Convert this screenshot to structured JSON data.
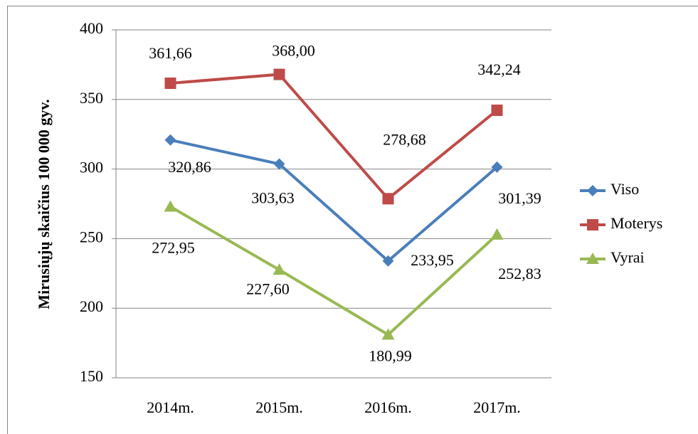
{
  "chart_data": {
    "type": "line",
    "y_label": "Mirusiųjų skaičius 100 000 gyv.",
    "categories": [
      "2014m.",
      "2015m.",
      "2016m.",
      "2017m."
    ],
    "series": [
      {
        "name": "Viso",
        "color": "#4a7ebb",
        "marker": "diamond",
        "values": [
          320.86,
          303.63,
          233.95,
          301.39
        ],
        "value_labels": [
          "320,86",
          "303,63",
          "233,95",
          "301,39"
        ]
      },
      {
        "name": "Moterys",
        "color": "#be4b48",
        "marker": "square",
        "values": [
          361.66,
          368.0,
          278.68,
          342.24
        ],
        "value_labels": [
          "361,66",
          "368,00",
          "278,68",
          "342,24"
        ]
      },
      {
        "name": "Vyrai",
        "color": "#98b954",
        "marker": "triangle",
        "values": [
          272.95,
          227.6,
          180.99,
          252.83
        ],
        "value_labels": [
          "272,95",
          "227,60",
          "180,99",
          "252,83"
        ]
      }
    ],
    "ylim": [
      150,
      400
    ],
    "yticks": [
      150,
      200,
      250,
      300,
      350,
      400
    ],
    "grid": true,
    "legend": "right"
  }
}
